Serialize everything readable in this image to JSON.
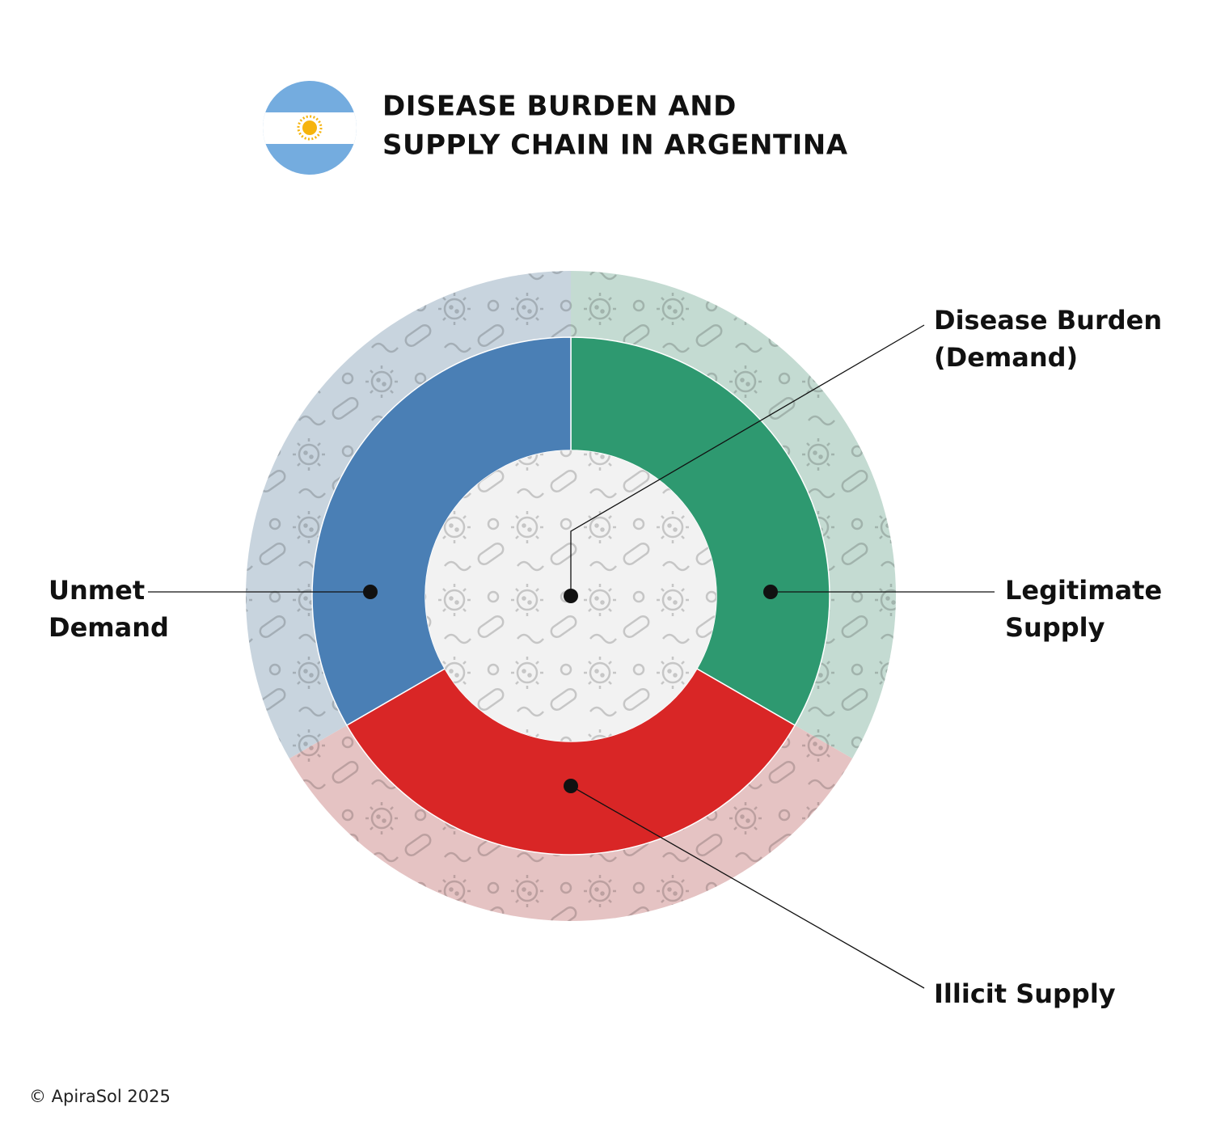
{
  "header": {
    "title_lines": [
      "DISEASE BURDEN AND",
      "SUPPLY CHAIN IN ARGENTINA"
    ]
  },
  "center": {
    "label_lines": [
      "Disease Burden",
      "(Demand)"
    ]
  },
  "segments": [
    {
      "label_lines": [
        "Legitimate",
        "Supply"
      ]
    },
    {
      "label_lines": [
        "Illicit Supply"
      ]
    },
    {
      "label_lines": [
        "Unmet",
        "Demand"
      ]
    }
  ],
  "footer": "© ApiraSol 2025"
}
